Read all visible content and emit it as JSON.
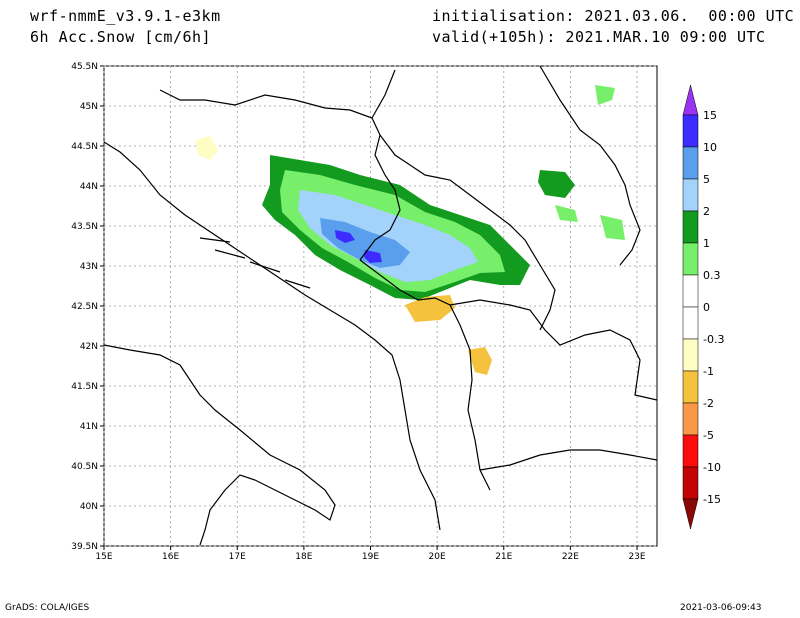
{
  "header": {
    "model": "wrf-nmmE_v3.9.1-e3km",
    "variable": "6h Acc.Snow [cm/6h]",
    "initialisation": "initialisation: 2021.03.06.  00:00 UTC",
    "valid": "valid(+105h): 2021.MAR.10 09:00 UTC"
  },
  "footer": {
    "left": "GrADS: COLA/IGES",
    "right": "2021-03-06-09:43"
  },
  "map": {
    "lat_ticks": [
      "45.5N",
      "45N",
      "44.5N",
      "44N",
      "43.5N",
      "43N",
      "42.5N",
      "42N",
      "41.5N",
      "41N",
      "40.5N",
      "40N",
      "39.5N"
    ],
    "lon_ticks": [
      "15E",
      "16E",
      "17E",
      "18E",
      "19E",
      "20E",
      "21E",
      "22E",
      "23E"
    ],
    "lat_range": [
      39.5,
      45.5
    ],
    "lon_range": [
      15,
      23.3
    ]
  },
  "colorbar": {
    "labels": [
      "15",
      "10",
      "5",
      "2",
      "1",
      "0.3",
      "0",
      "-0.3",
      "-1",
      "-2",
      "-5",
      "-10",
      "-15"
    ],
    "colors": [
      "#3c2cff",
      "#5a9fee",
      "#a3d3fb",
      "#139b1f",
      "#77ef6b",
      "#ffffff",
      "#ffffff",
      "#fefdc4",
      "#f5c23d",
      "#f89848",
      "#fc0d0d",
      "#c20405",
      "#9a0205"
    ],
    "top_arrow": "#9b33f5",
    "bottom_arrow": "#8a0808"
  }
}
